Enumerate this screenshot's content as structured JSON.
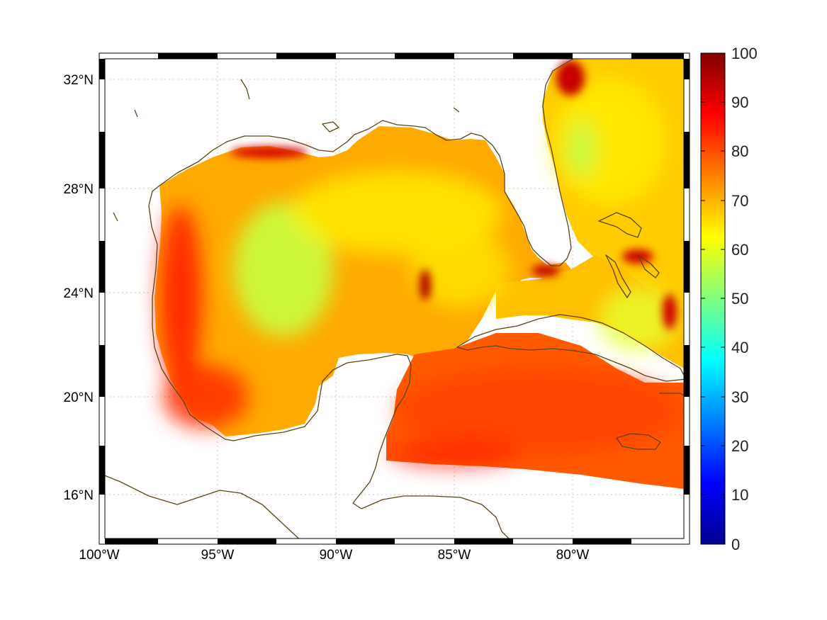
{
  "map": {
    "latitude_labels": [
      "32°N",
      "28°N",
      "24°N",
      "20°N",
      "16°N"
    ],
    "longitude_labels": [
      "100°W",
      "95°W",
      "90°W",
      "85°W",
      "80°W"
    ],
    "extent": {
      "lon_min": -100,
      "lon_max": -75,
      "lat_min": 14.3,
      "lat_max": 33
    },
    "coastline_color": "#5c4413",
    "gridlines": "dotted"
  },
  "colorbar": {
    "ticks": [
      "100",
      "90",
      "80",
      "70",
      "60",
      "50",
      "40",
      "30",
      "20",
      "10",
      "0"
    ],
    "min": 0,
    "max": 100,
    "colormap": "jet",
    "colors": [
      "#00008f",
      "#0000ff",
      "#0080ff",
      "#00ffff",
      "#80ff80",
      "#ffff00",
      "#ff8000",
      "#ff0000",
      "#800000"
    ]
  }
}
